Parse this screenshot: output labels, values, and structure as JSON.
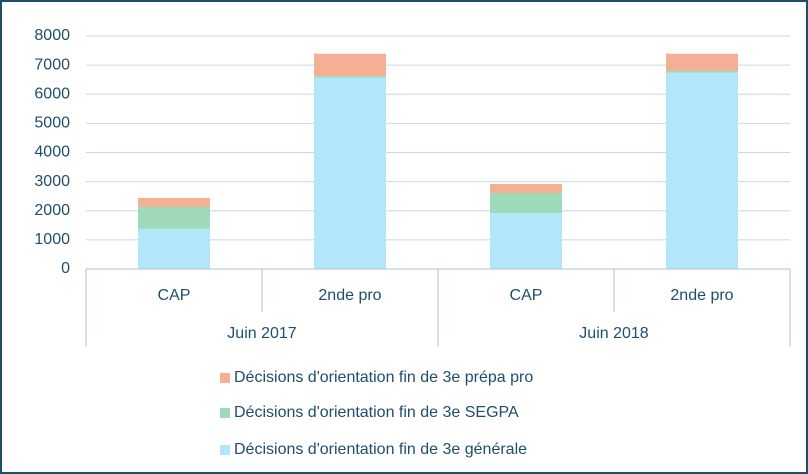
{
  "chart_data": {
    "type": "stacked_bar",
    "categories": [
      "CAP",
      "2nde pro",
      "CAP",
      "2nde pro"
    ],
    "groups": [
      "Juin 2017",
      "Juin 2018"
    ],
    "series": [
      {
        "name": "Décisions d'orientation fin de 3e générale",
        "color": "#b3e5fb",
        "values": [
          1380,
          6570,
          1920,
          6740
        ]
      },
      {
        "name": "Décisions d'orientation fin de 3e SEGPA",
        "color": "#9ed9b9",
        "values": [
          750,
          60,
          690,
          60
        ]
      },
      {
        "name": "Décisions d'orientation fin de 3e prépa pro",
        "color": "#f4b095",
        "values": [
          310,
          760,
          310,
          590
        ]
      }
    ],
    "ylim": [
      0,
      8000
    ],
    "yticks": [
      0,
      1000,
      2000,
      3000,
      4000,
      5000,
      6000,
      7000,
      8000
    ],
    "grid": true,
    "legend": "bottom"
  }
}
